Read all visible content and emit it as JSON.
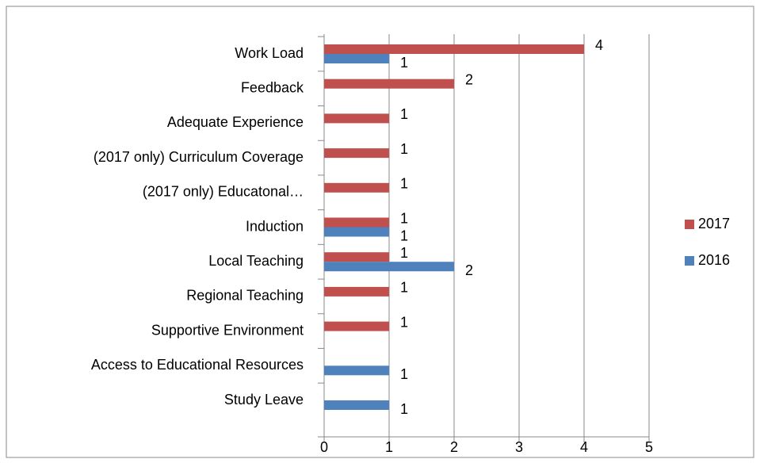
{
  "chart_data": {
    "type": "hbar",
    "categories": [
      "Work Load",
      "Feedback",
      "Adequate Experience",
      "(2017 only) Curriculum Coverage",
      "(2017 only) Educatonal…",
      "Induction",
      "Local Teaching",
      "Regional Teaching",
      "Supportive Environment",
      "Access to Educational Resources",
      "Study Leave"
    ],
    "series": [
      {
        "name": "2017",
        "color": "#c0504d",
        "values": [
          4,
          2,
          1,
          1,
          1,
          1,
          1,
          1,
          1,
          null,
          null
        ]
      },
      {
        "name": "2016",
        "color": "#4f81bd",
        "values": [
          1,
          null,
          null,
          null,
          null,
          1,
          2,
          null,
          null,
          1,
          1
        ]
      }
    ],
    "xlim": [
      0,
      5
    ],
    "xticks": [
      0,
      1,
      2,
      3,
      4,
      5
    ],
    "grid": true,
    "legend": "right"
  }
}
